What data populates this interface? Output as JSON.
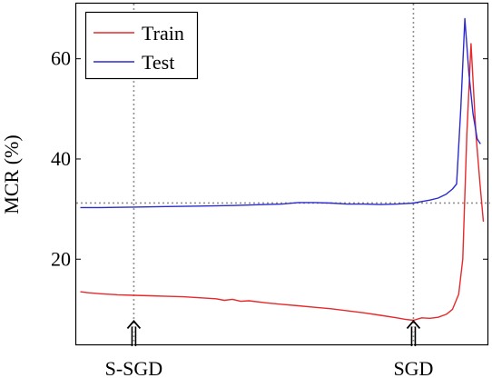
{
  "chart_data": {
    "type": "line",
    "title": "",
    "xlabel": "",
    "ylabel": "MCR (%)",
    "ylim": [
      3,
      71
    ],
    "xlim": [
      0,
      100
    ],
    "yticks": [
      20,
      40,
      60
    ],
    "grid": false,
    "legend": {
      "placement": "top-left",
      "entries": [
        "Train",
        "Test"
      ]
    },
    "reference_lines": {
      "vertical_x": [
        14,
        82
      ],
      "horizontal_y": [
        31.2
      ]
    },
    "annotations": [
      {
        "label": "S-SGD",
        "x": 14,
        "y": 8
      },
      {
        "label": "SGD",
        "x": 82,
        "y": 8
      }
    ],
    "colors": {
      "Train": "#e8282a",
      "Test": "#2b2bd0",
      "reference": "#909090"
    },
    "series": [
      {
        "name": "Train",
        "x": [
          1,
          3,
          6,
          10,
          14,
          18,
          22,
          26,
          30,
          34,
          36,
          38,
          40,
          42,
          46,
          50,
          54,
          58,
          62,
          66,
          70,
          74,
          78,
          80,
          82,
          84,
          86,
          88,
          90,
          91.5,
          93,
          94,
          95,
          96,
          97.2,
          98.2,
          99
        ],
        "values": [
          13.5,
          13.3,
          13.1,
          12.9,
          12.8,
          12.7,
          12.6,
          12.5,
          12.3,
          12.1,
          11.8,
          12.0,
          11.6,
          11.7,
          11.3,
          11.0,
          10.7,
          10.4,
          10.1,
          9.7,
          9.3,
          8.8,
          8.3,
          8.0,
          7.8,
          8.3,
          8.2,
          8.4,
          9.0,
          10.0,
          13.0,
          20.0,
          45.0,
          63.0,
          45.0,
          35.0,
          27.5
        ]
      },
      {
        "name": "Test",
        "x": [
          1,
          6,
          14,
          22,
          30,
          38,
          46,
          50,
          54,
          58,
          62,
          66,
          70,
          74,
          78,
          82,
          84,
          86,
          88,
          90,
          91.5,
          92.5,
          93.5,
          94.5,
          95.5,
          96.5,
          97.5,
          98.3
        ],
        "values": [
          30.3,
          30.3,
          30.4,
          30.5,
          30.6,
          30.7,
          30.9,
          31.0,
          31.3,
          31.3,
          31.2,
          31.0,
          31.0,
          30.9,
          31.0,
          31.2,
          31.5,
          31.8,
          32.2,
          33.0,
          34.0,
          35.0,
          50.0,
          68.0,
          57.0,
          49.0,
          44.0,
          43.0
        ]
      }
    ]
  }
}
